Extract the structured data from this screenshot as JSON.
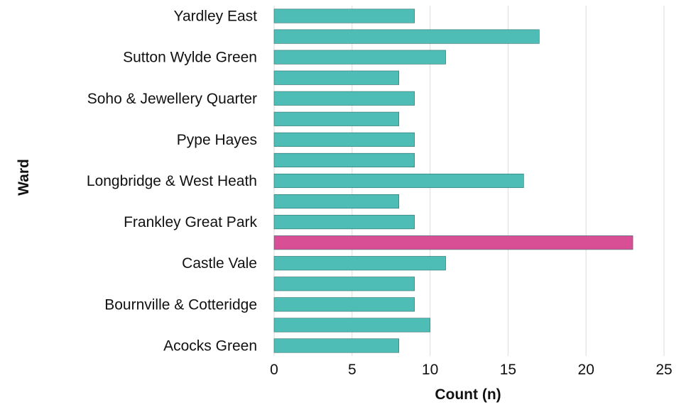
{
  "chart_data": {
    "type": "bar",
    "orientation": "horizontal",
    "xlabel": "Count (n)",
    "ylabel": "Ward",
    "xlim": [
      0,
      25
    ],
    "xticks": [
      0,
      5,
      10,
      15,
      20,
      25
    ],
    "grid": "vertical",
    "colors": {
      "default": "#4dbdb6",
      "highlight": "#d94f96",
      "bar_edge": "#2f6f6b"
    },
    "categories": [
      "Yardley East",
      "",
      "Sutton Wylde Green",
      "",
      "Soho & Jewellery Quarter",
      "",
      "Pype Hayes",
      "",
      "Longbridge & West Heath",
      "",
      "Frankley Great Park",
      "",
      "Castle Vale",
      "",
      "Bournville & Cotteridge",
      "",
      "Acocks Green"
    ],
    "values": [
      9,
      17,
      11,
      8,
      9,
      8,
      9,
      9,
      16,
      8,
      9,
      23,
      11,
      9,
      9,
      10,
      8
    ],
    "highlight_index": 11
  }
}
